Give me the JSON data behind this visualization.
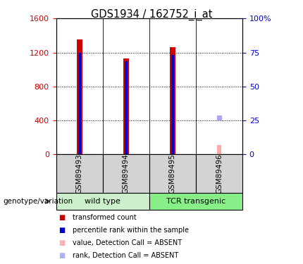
{
  "title": "GDS1934 / 162752_i_at",
  "samples": [
    "GSM89493",
    "GSM89494",
    "GSM89495",
    "GSM89496"
  ],
  "red_values": [
    1350,
    1130,
    1260,
    0
  ],
  "blue_values": [
    1195,
    1095,
    1175,
    0
  ],
  "pink_value": 110,
  "pink_index": 3,
  "blue_square_value": 430,
  "blue_square_index": 3,
  "ylim_left": [
    0,
    1600
  ],
  "ylim_right": [
    0,
    100
  ],
  "yticks_left": [
    0,
    400,
    800,
    1200,
    1600
  ],
  "ytick_labels_left": [
    "0",
    "400",
    "800",
    "1200",
    "1600"
  ],
  "yticks_right": [
    0,
    25,
    50,
    75,
    100
  ],
  "ytick_labels_right": [
    "0",
    "25",
    "50",
    "75",
    "100%"
  ],
  "group_label": "genotype/variation",
  "legend": [
    {
      "color": "#cc0000",
      "label": "transformed count"
    },
    {
      "color": "#0000cc",
      "label": "percentile rank within the sample"
    },
    {
      "color": "#ffb0b0",
      "label": "value, Detection Call = ABSENT"
    },
    {
      "color": "#b0b0ff",
      "label": "rank, Detection Call = ABSENT"
    }
  ],
  "red_bar_width": 0.12,
  "blue_bar_width": 0.06,
  "pink_bar_width": 0.1,
  "bar_color_red": "#cc0000",
  "bar_color_blue": "#0000cc",
  "bar_color_pink": "#ffaaaa",
  "square_color_blue": "#aaaaee",
  "bg_sample_row": "#d3d3d3",
  "bg_group_wt": "#ccf0cc",
  "bg_group_tcr": "#88ee88"
}
